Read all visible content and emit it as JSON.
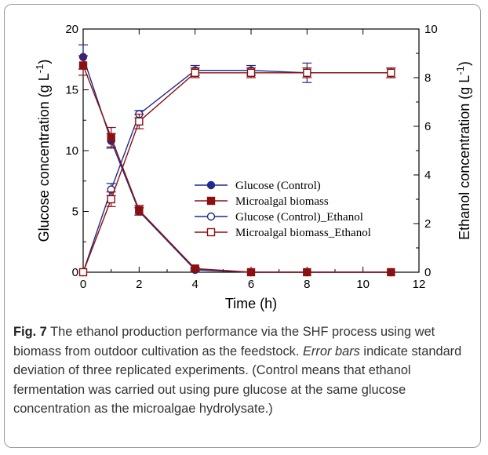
{
  "chart_data": {
    "type": "line",
    "xlabel": "Time (h)",
    "ylabel_left": "Glucose concentration (g L",
    "ylabel_right": "Ethanol concentration (g L",
    "ylabel_sup": "-1",
    "xlim": [
      0,
      12
    ],
    "ylim_left": [
      0,
      20
    ],
    "ylim_right": [
      0,
      10
    ],
    "x_ticks": [
      "0",
      "2",
      "4",
      "6",
      "8",
      "10",
      "12"
    ],
    "y_left_ticks": [
      "0",
      "5",
      "10",
      "15",
      "20"
    ],
    "y_right_ticks": [
      "0",
      "2",
      "4",
      "6",
      "8",
      "10"
    ],
    "legend_position": "center-right",
    "series": [
      {
        "name": "Glucose (Control)",
        "axis": "left",
        "marker": "circle",
        "filled": true,
        "color": "#1f2a8c",
        "x": [
          0,
          1,
          2,
          4,
          6,
          8,
          11
        ],
        "y": [
          17.7,
          10.8,
          5.0,
          0.2,
          0.0,
          0.0,
          0.0
        ],
        "err": [
          1.0,
          0.6,
          0.3,
          0.1,
          0.0,
          0.0,
          0.0
        ]
      },
      {
        "name": "Microalgal biomass",
        "axis": "left",
        "marker": "square",
        "filled": true,
        "color": "#8b1010",
        "x": [
          0,
          1,
          2,
          4,
          6,
          8,
          11
        ],
        "y": [
          17.0,
          11.1,
          5.1,
          0.3,
          0.0,
          0.0,
          0.0
        ],
        "err": [
          0.8,
          0.8,
          0.4,
          0.1,
          0.0,
          0.0,
          0.0
        ]
      },
      {
        "name": "Glucose (Control)_Ethanol",
        "axis": "right",
        "marker": "circle",
        "filled": false,
        "color": "#1f2a8c",
        "x": [
          0,
          1,
          2,
          4,
          6,
          8,
          11
        ],
        "y": [
          0.0,
          3.4,
          6.5,
          8.3,
          8.3,
          8.2,
          8.2
        ],
        "err": [
          0.0,
          0.25,
          0.15,
          0.2,
          0.2,
          0.4,
          0.2
        ]
      },
      {
        "name": "Microalgal biomass_Ethanol",
        "axis": "right",
        "marker": "square",
        "filled": false,
        "color": "#8b1010",
        "x": [
          0,
          1,
          2,
          4,
          6,
          8,
          11
        ],
        "y": [
          0.0,
          3.0,
          6.2,
          8.2,
          8.2,
          8.2,
          8.2
        ],
        "err": [
          0.0,
          0.3,
          0.3,
          0.2,
          0.2,
          0.2,
          0.2
        ]
      }
    ]
  },
  "caption": {
    "label": "Fig. 7",
    "part1": "The ethanol production performance via the SHF process using wet biomass from outdoor cultivation as the feedstock.",
    "error_word": "Error bars",
    "part2": "indicate standard deviation of three replicated experiments. (Control means that ethanol fermentation was carried out using pure glucose at the same glucose concentration as the microalgae hydrolysate.)"
  }
}
